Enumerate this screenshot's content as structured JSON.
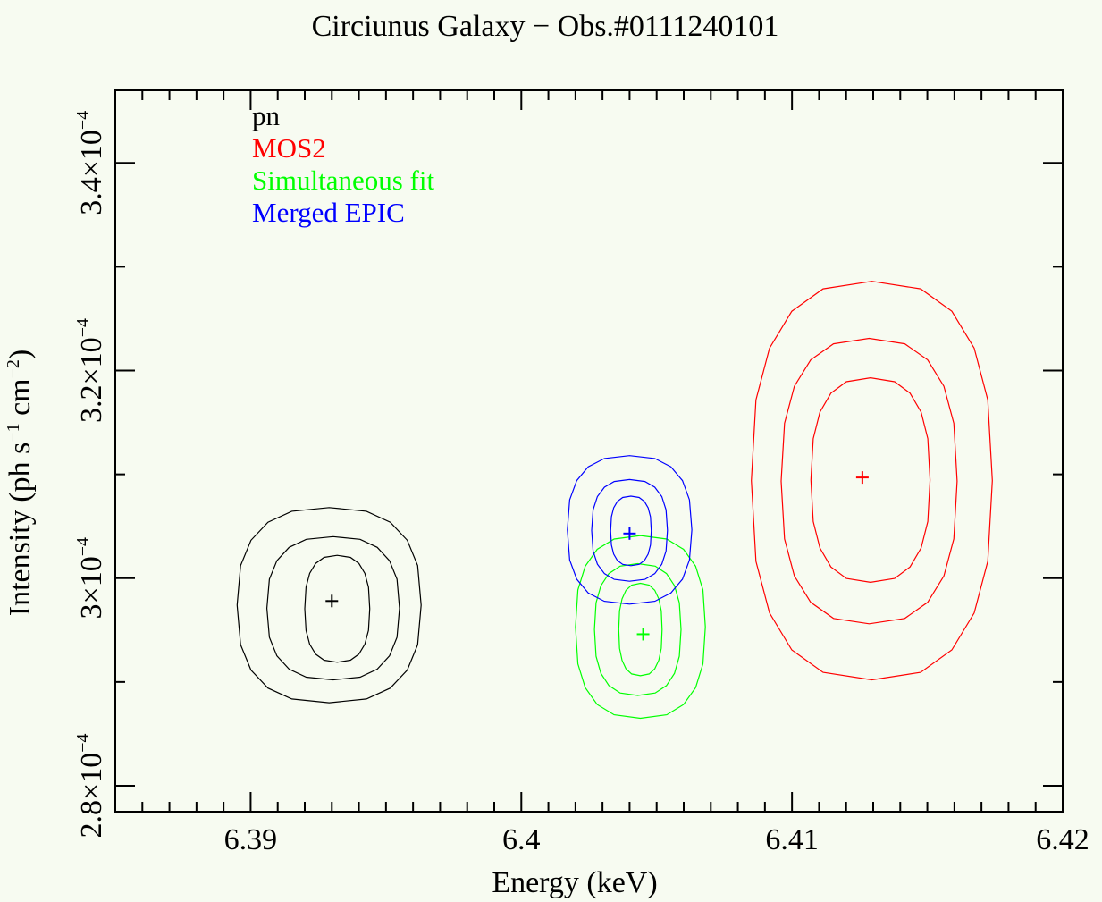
{
  "chart_data": {
    "type": "scatter",
    "title": "Circiunus Galaxy − Obs.#0111240101",
    "xlabel": "Energy (keV)",
    "ylabel_parts": [
      "Intensity (ph s",
      "−1",
      " cm",
      "−2",
      ")"
    ],
    "xlim": [
      6.385,
      6.42
    ],
    "ylim": [
      0.0002775,
      0.000347
    ],
    "x_ticks": [
      {
        "value": 6.39,
        "label": "6.39"
      },
      {
        "value": 6.4,
        "label": "6.4"
      },
      {
        "value": 6.41,
        "label": "6.41"
      },
      {
        "value": 6.42,
        "label": "6.42"
      }
    ],
    "y_ticks": [
      {
        "value": 0.00028,
        "mantissa": "2.8×10",
        "exponent": "−4"
      },
      {
        "value": 0.0003,
        "mantissa": "3×10",
        "exponent": "−4"
      },
      {
        "value": 0.00032,
        "mantissa": "3.2×10",
        "exponent": "−4"
      },
      {
        "value": 0.00034,
        "mantissa": "3.4×10",
        "exponent": "−4"
      }
    ],
    "x_minor_step": 0.001,
    "y_minor_step": 1e-05,
    "y_major_step": 0.0001,
    "grid": false,
    "legend_position": "top-left",
    "series": [
      {
        "name": "pn",
        "color": "#000000",
        "best_fit": {
          "x": 6.393,
          "y": 0.0002978
        },
        "contours": [
          {
            "ex": [
              6.392,
              6.3944
            ],
            "ey": [
              0.0002919,
              0.0003022
            ]
          },
          {
            "ex": [
              6.3906,
              6.3955
            ],
            "ey": [
              0.0002902,
              0.000304
            ]
          },
          {
            "ex": [
              6.3895,
              6.3963
            ],
            "ey": [
              0.000288,
              0.0003068
            ]
          }
        ]
      },
      {
        "name": "MOS2",
        "color": "#ff0000",
        "best_fit": {
          "x": 6.4126,
          "y": 0.0003097
        },
        "contours": [
          {
            "ex": [
              6.4107,
              6.4151
            ],
            "ey": [
              0.0002996,
              0.0003193
            ]
          },
          {
            "ex": [
              6.4096,
              6.4161
            ],
            "ey": [
              0.0002956,
              0.0003231
            ]
          },
          {
            "ex": [
              6.4085,
              6.4174
            ],
            "ey": [
              0.0002902,
              0.0003286
            ]
          }
        ]
      },
      {
        "name": "Simultaneous fit",
        "color": "#00ff00",
        "best_fit": {
          "x": 6.4045,
          "y": 0.0002946
        },
        "contours": [
          {
            "ex": [
              6.4036,
              6.4052
            ],
            "ey": [
              0.0002906,
              0.0002995
            ]
          },
          {
            "ex": [
              6.4027,
              6.4059
            ],
            "ey": [
              0.0002887,
              0.0003014
            ]
          },
          {
            "ex": [
              6.402,
              6.4068
            ],
            "ey": [
              0.0002865,
              0.0003041
            ]
          }
        ]
      },
      {
        "name": "Merged EPIC",
        "color": "#0000ff",
        "best_fit": {
          "x": 6.404,
          "y": 0.0003043
        },
        "contours": [
          {
            "ex": [
              6.4033,
              6.4048
            ],
            "ey": [
              0.0003012,
              0.0003079
            ]
          },
          {
            "ex": [
              6.4026,
              6.4054
            ],
            "ey": [
              0.0002997,
              0.0003095
            ]
          },
          {
            "ex": [
              6.4017,
              6.4063
            ],
            "ey": [
              0.0002975,
              0.0003118
            ]
          }
        ]
      }
    ]
  }
}
